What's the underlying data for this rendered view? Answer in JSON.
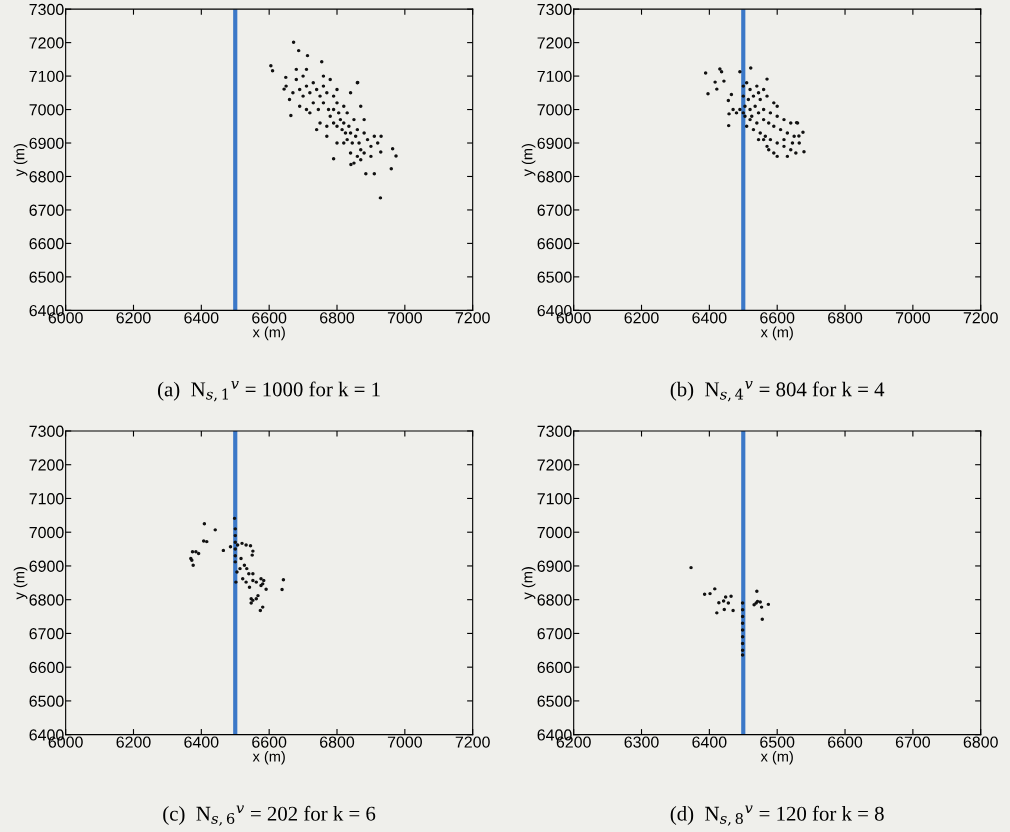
{
  "chart_data": [
    {
      "type": "scatter",
      "title": "(a)  N$_{s,1}$$^{v}$ = 1000 for k = 1",
      "xlabel": "x (m)",
      "ylabel": "y (m)",
      "marker": "circle",
      "grid": false,
      "xlim": [
        6000,
        7200
      ],
      "xticks": [
        6000,
        6200,
        6400,
        6600,
        6800,
        7000,
        7200
      ],
      "ylim": [
        6400,
        7300
      ],
      "yticks": [
        6400,
        6500,
        6600,
        6700,
        6800,
        6900,
        7000,
        7100,
        7200,
        7300
      ],
      "ref_lines": [
        {
          "axis": "x",
          "value": 6500,
          "color": "#3b78c8"
        }
      ],
      "series": [
        {
          "color": "#111111",
          "x": [
            6672,
            6605,
            6610,
            6687,
            6713,
            6755,
            6928,
            6974,
            6960,
            6910,
            6885,
            6790,
            6841,
            6664,
            6644,
            6649,
            6861,
            6929,
            6964,
            6680,
            6700,
            6690,
            6710,
            6720,
            6700,
            6730,
            6740,
            6750,
            6730,
            6745,
            6760,
            6770,
            6760,
            6775,
            6780,
            6790,
            6800,
            6790,
            6805,
            6810,
            6800,
            6820,
            6830,
            6820,
            6835,
            6840,
            6830,
            6850,
            6860,
            6855,
            6865,
            6870,
            6880,
            6890,
            6900,
            6880,
            6860,
            6910,
            6920,
            6900,
            6770,
            6750,
            6720,
            6690,
            6670,
            6660,
            6650,
            6680,
            6710,
            6760,
            6780,
            6800,
            6840,
            6860,
            6870,
            6880,
            6820,
            6800,
            6840,
            6850,
            6870,
            6930,
            6770,
            6740,
            6710,
            6790,
            6815,
            6825,
            6845
          ],
          "values": [
            7201,
            7131,
            7116,
            7176,
            7161,
            7143,
            6736,
            6861,
            6823,
            6808,
            6808,
            6853,
            6836,
            6982,
            7061,
            7096,
            7081,
            6873,
            6883,
            7090,
            7100,
            7060,
            7070,
            7050,
            7040,
            7080,
            7060,
            7040,
            7020,
            7000,
            7070,
            7050,
            7020,
            7000,
            6980,
            7040,
            7020,
            7000,
            6990,
            6970,
            6950,
            7010,
            6990,
            6960,
            6950,
            6930,
            6910,
            6970,
            6940,
            6920,
            6900,
            6880,
            6930,
            6910,
            6890,
            6870,
            6860,
            6920,
            6900,
            6860,
            6950,
            6960,
            6990,
            7010,
            7050,
            7030,
            7070,
            7120,
            7120,
            7100,
            7090,
            7060,
            7050,
            7080,
            7010,
            6970,
            6900,
            6900,
            6870,
            6840,
            6850,
            6920,
            6920,
            6940,
            7000,
            6960,
            6940,
            6930,
            6900
          ]
        }
      ]
    },
    {
      "type": "scatter",
      "title": "(b)  N$_{s,4}$$^{v}$ = 804 for k = 4",
      "xlabel": "x (m)",
      "ylabel": "y (m)",
      "marker": "circle",
      "grid": false,
      "xlim": [
        6000,
        7200
      ],
      "xticks": [
        6000,
        6200,
        6400,
        6600,
        6800,
        7000,
        7200
      ],
      "ylim": [
        6400,
        7300
      ],
      "yticks": [
        6400,
        6500,
        6600,
        6700,
        6800,
        6900,
        7000,
        7100,
        7200,
        7300
      ],
      "ref_lines": [
        {
          "axis": "x",
          "value": 6500,
          "color": "#3b78c8"
        }
      ],
      "series": [
        {
          "color": "#111111",
          "x": [
            6389,
            6396,
            6417,
            6422,
            6431,
            6436,
            6443,
            6490,
            6522,
            6456,
            6457,
            6465,
            6458,
            6570,
            6676,
            6679,
            6664,
            6657,
            6500,
            6510,
            6520,
            6540,
            6560,
            6500,
            6515,
            6530,
            6550,
            6570,
            6590,
            6600,
            6505,
            6520,
            6535,
            6545,
            6560,
            6580,
            6600,
            6620,
            6640,
            6660,
            6505,
            6520,
            6540,
            6560,
            6575,
            6590,
            6610,
            6630,
            6650,
            6530,
            6550,
            6565,
            6580,
            6600,
            6620,
            6640,
            6655,
            6590,
            6600,
            6575,
            6560,
            6510,
            6500,
            6525,
            6545,
            6490,
            6480,
            6470,
            6630,
            6645,
            6620,
            6545,
            6570,
            6665
          ],
          "values": [
            7109,
            7047,
            7082,
            7061,
            7121,
            7113,
            7085,
            7113,
            7124,
            7027,
            6952,
            7045,
            6987,
            7091,
            6932,
            6874,
            6921,
            6961,
            7070,
            7080,
            7060,
            7070,
            7060,
            7040,
            7030,
            7040,
            7030,
            7040,
            7020,
            7010,
            7010,
            7000,
            7010,
            6990,
            7000,
            6990,
            6980,
            6970,
            6960,
            6960,
            6980,
            6970,
            6960,
            6970,
            6960,
            6950,
            6940,
            6930,
            6920,
            6940,
            6930,
            6920,
            6910,
            6900,
            6890,
            6880,
            6870,
            6870,
            6860,
            6880,
            6910,
            6950,
            6990,
            6980,
            7050,
            7000,
            6990,
            7000,
            6860,
            6900,
            6910,
            6910,
            6890,
            6900
          ]
        }
      ]
    },
    {
      "type": "scatter",
      "title": "(c)  N$_{s,6}$$^{v}$ = 202 for k = 6",
      "xlabel": "x (m)",
      "ylabel": "y (m)",
      "marker": "circle",
      "grid": false,
      "xlim": [
        6000,
        7200
      ],
      "xticks": [
        6000,
        6200,
        6400,
        6600,
        6800,
        7000,
        7200
      ],
      "ylim": [
        6400,
        7300
      ],
      "yticks": [
        6400,
        6500,
        6600,
        6700,
        6800,
        6900,
        7000,
        7100,
        7200,
        7300
      ],
      "ref_lines": [
        {
          "axis": "x",
          "value": 6500,
          "color": "#3b78c8"
        }
      ],
      "series": [
        {
          "color": "#111111",
          "x": [
            6409,
            6441,
            6407,
            6416,
            6374,
            6384,
            6392,
            6369,
            6372,
            6376,
            6465,
            6486,
            6498,
            6500,
            6500,
            6500,
            6500,
            6500,
            6500,
            6507,
            6520,
            6532,
            6545,
            6552,
            6550,
            6517,
            6527,
            6534,
            6514,
            6540,
            6552,
            6505,
            6522,
            6532,
            6552,
            6562,
            6576,
            6584,
            6581,
            6591,
            6576,
            6542,
            6502,
            6547,
            6552,
            6562,
            6547,
            6567,
            6581,
            6574,
            6638,
            6642
          ],
          "values": [
            7025,
            7007,
            6974,
            6972,
            6942,
            6942,
            6937,
            6922,
            6917,
            6902,
            6946,
            6957,
            7041,
            7010,
            6990,
            6970,
            6950,
            6930,
            6912,
            6962,
            6967,
            6962,
            6960,
            6944,
            6932,
            6922,
            6902,
            6892,
            6892,
            6877,
            6877,
            6882,
            6862,
            6852,
            6857,
            6852,
            6862,
            6857,
            6847,
            6831,
            6842,
            6837,
            6852,
            6803,
            6798,
            6803,
            6790,
            6812,
            6778,
            6768,
            6830,
            6859
          ]
        }
      ]
    },
    {
      "type": "scatter",
      "title": "(d)  N$_{s,8}$$^{v}$ = 120 for k = 8",
      "xlabel": "x (m)",
      "ylabel": "y (m)",
      "marker": "circle",
      "grid": false,
      "xlim": [
        6200,
        6800
      ],
      "xticks": [
        6200,
        6300,
        6400,
        6500,
        6600,
        6700,
        6800
      ],
      "ylim": [
        6400,
        7300
      ],
      "yticks": [
        6400,
        6500,
        6600,
        6700,
        6800,
        6900,
        7000,
        7100,
        7200,
        7300
      ],
      "ref_lines": [
        {
          "axis": "x",
          "value": 6450,
          "color": "#3b78c8"
        }
      ],
      "series": [
        {
          "color": "#111111",
          "x": [
            6373,
            6393,
            6401,
            6408,
            6414,
            6411,
            6421,
            6424,
            6428,
            6432,
            6422,
            6435,
            6470,
            6469,
            6471,
            6475,
            6477,
            6478,
            6487,
            6466,
            6449,
            6449,
            6449,
            6449,
            6449,
            6449,
            6449,
            6449,
            6449
          ],
          "values": [
            6895,
            6816,
            6818,
            6832,
            6791,
            6761,
            6796,
            6808,
            6790,
            6810,
            6771,
            6768,
            6825,
            6790,
            6795,
            6793,
            6778,
            6742,
            6786,
            6785,
            6790,
            6770,
            6750,
            6730,
            6710,
            6690,
            6670,
            6650,
            6636
          ]
        }
      ]
    }
  ]
}
